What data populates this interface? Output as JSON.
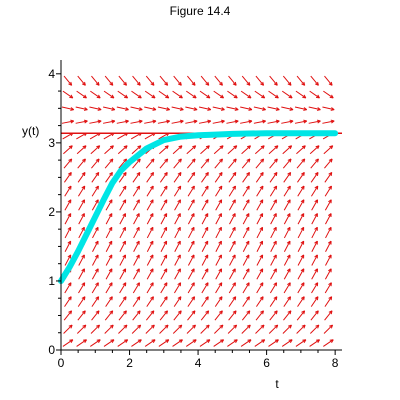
{
  "chart_data": {
    "type": "line",
    "title": "Figure 14.4",
    "xlabel": "t",
    "ylabel": "y(t)",
    "xlim": [
      0,
      8.2
    ],
    "ylim": [
      0,
      4.2
    ],
    "x_ticks": [
      0,
      2,
      4,
      6,
      8
    ],
    "y_ticks": [
      0,
      1,
      2,
      3,
      4
    ],
    "grid": false,
    "legend": "none",
    "direction_field": {
      "description": "red slope-field arrows",
      "color": "#e01010",
      "t_range": [
        0,
        8
      ],
      "y_range": [
        0,
        4
      ],
      "t_count": 20,
      "y_count": 20,
      "equilibrium": 3.14
    },
    "equilibrium_line": {
      "y": 3.14,
      "color": "#e01010"
    },
    "series": [
      {
        "color": "#00e5e5",
        "x": [
          0,
          0.25,
          0.5,
          0.75,
          1,
          1.25,
          1.5,
          1.75,
          2,
          2.5,
          3,
          3.5,
          4,
          4.5,
          5,
          6,
          7,
          8
        ],
        "y": [
          1.0,
          1.2,
          1.43,
          1.68,
          1.93,
          2.18,
          2.42,
          2.6,
          2.72,
          2.92,
          3.04,
          3.09,
          3.11,
          3.12,
          3.13,
          3.14,
          3.14,
          3.14
        ]
      }
    ]
  }
}
